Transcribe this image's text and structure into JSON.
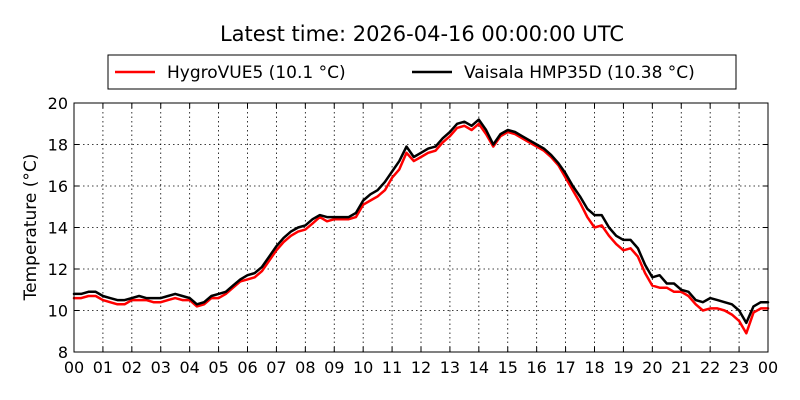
{
  "chart_data": {
    "type": "line",
    "title": "Latest time: 2026-04-16 00:00:00 UTC",
    "xlabel": "",
    "ylabel": "Temperature (°C)",
    "ylim": [
      8,
      20
    ],
    "xlim": [
      0,
      24
    ],
    "yticks": [
      "8",
      "10",
      "12",
      "14",
      "16",
      "18",
      "20"
    ],
    "xticks": [
      "00",
      "01",
      "02",
      "03",
      "04",
      "05",
      "06",
      "07",
      "08",
      "09",
      "10",
      "11",
      "12",
      "13",
      "14",
      "15",
      "16",
      "17",
      "18",
      "19",
      "20",
      "21",
      "22",
      "23",
      "00"
    ],
    "grid": true,
    "legend_position": "top",
    "x": [
      0,
      0.25,
      0.5,
      0.75,
      1,
      1.25,
      1.5,
      1.75,
      2,
      2.25,
      2.5,
      2.75,
      3,
      3.25,
      3.5,
      3.75,
      4,
      4.25,
      4.5,
      4.75,
      5,
      5.25,
      5.5,
      5.75,
      6,
      6.25,
      6.5,
      6.75,
      7,
      7.25,
      7.5,
      7.75,
      8,
      8.25,
      8.5,
      8.75,
      9,
      9.25,
      9.5,
      9.75,
      10,
      10.25,
      10.5,
      10.75,
      11,
      11.25,
      11.5,
      11.75,
      12,
      12.25,
      12.5,
      12.75,
      13,
      13.25,
      13.5,
      13.75,
      14,
      14.25,
      14.5,
      14.75,
      15,
      15.25,
      15.5,
      15.75,
      16,
      16.25,
      16.5,
      16.75,
      17,
      17.25,
      17.5,
      17.75,
      18,
      18.25,
      18.5,
      18.75,
      19,
      19.25,
      19.5,
      19.75,
      20,
      20.25,
      20.5,
      20.75,
      21,
      21.25,
      21.5,
      21.75,
      22,
      22.25,
      22.5,
      22.75,
      23,
      23.25,
      23.5,
      23.75,
      24
    ],
    "series": [
      {
        "name": "HygroVUE5 (10.1 °C)",
        "color": "#ff0000",
        "values": [
          10.6,
          10.6,
          10.7,
          10.7,
          10.5,
          10.4,
          10.3,
          10.3,
          10.5,
          10.5,
          10.5,
          10.4,
          10.4,
          10.5,
          10.6,
          10.5,
          10.5,
          10.2,
          10.3,
          10.6,
          10.6,
          10.8,
          11.1,
          11.4,
          11.5,
          11.6,
          11.9,
          12.4,
          12.9,
          13.3,
          13.6,
          13.8,
          13.9,
          14.2,
          14.5,
          14.3,
          14.4,
          14.4,
          14.4,
          14.5,
          15.1,
          15.3,
          15.5,
          15.8,
          16.4,
          16.8,
          17.6,
          17.2,
          17.4,
          17.6,
          17.7,
          18.1,
          18.4,
          18.8,
          18.9,
          18.7,
          19.0,
          18.5,
          17.9,
          18.4,
          18.6,
          18.5,
          18.3,
          18.1,
          17.9,
          17.7,
          17.4,
          17.0,
          16.4,
          15.8,
          15.2,
          14.5,
          14.0,
          14.1,
          13.6,
          13.2,
          12.9,
          13.0,
          12.6,
          11.8,
          11.2,
          11.1,
          11.1,
          10.9,
          10.9,
          10.7,
          10.3,
          10.0,
          10.1,
          10.1,
          10.0,
          9.8,
          9.5,
          8.9,
          9.9,
          10.1,
          10.1
        ]
      },
      {
        "name": "Vaisala HMP35D (10.38 °C)",
        "color": "#000000",
        "values": [
          10.8,
          10.8,
          10.9,
          10.9,
          10.7,
          10.6,
          10.5,
          10.5,
          10.6,
          10.7,
          10.6,
          10.6,
          10.6,
          10.7,
          10.8,
          10.7,
          10.6,
          10.3,
          10.4,
          10.7,
          10.8,
          10.9,
          11.2,
          11.5,
          11.7,
          11.8,
          12.1,
          12.6,
          13.1,
          13.5,
          13.8,
          14.0,
          14.1,
          14.4,
          14.6,
          14.5,
          14.5,
          14.5,
          14.5,
          14.7,
          15.3,
          15.6,
          15.8,
          16.2,
          16.7,
          17.2,
          17.9,
          17.4,
          17.6,
          17.8,
          17.9,
          18.3,
          18.6,
          19.0,
          19.1,
          18.9,
          19.2,
          18.7,
          18.0,
          18.5,
          18.7,
          18.6,
          18.4,
          18.2,
          18.0,
          17.8,
          17.5,
          17.1,
          16.6,
          16.0,
          15.5,
          14.9,
          14.6,
          14.6,
          14.0,
          13.6,
          13.4,
          13.4,
          13.0,
          12.2,
          11.6,
          11.7,
          11.3,
          11.3,
          11.0,
          10.9,
          10.5,
          10.4,
          10.6,
          10.5,
          10.4,
          10.3,
          10.0,
          9.4,
          10.2,
          10.4,
          10.4
        ]
      }
    ]
  }
}
